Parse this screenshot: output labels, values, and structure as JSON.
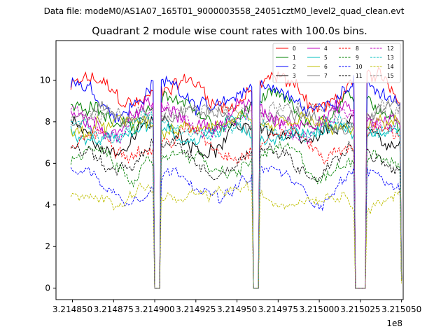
{
  "suptitle": "Data file: modeM0/AS1A07_165T01_9000003558_24051cztM0_level2_quad_clean.evt",
  "chart_data": {
    "type": "line",
    "title": "Quadrant 2 module wise count rates with 100.0s bins.",
    "xlabel": "",
    "ylabel": "",
    "x_offset_label": "1e8",
    "xlim": [
      321484000,
      321505100
    ],
    "ylim": [
      -0.55,
      11.9
    ],
    "x_ticks": [
      321485000,
      321487500,
      321490000,
      321492500,
      321495000,
      321497500,
      321500000,
      321502500,
      321505000
    ],
    "x_tick_labels": [
      "3.214850",
      "3.214875",
      "3.214900",
      "3.214925",
      "3.214950",
      "3.214975",
      "3.215000",
      "3.215025",
      "3.215050"
    ],
    "y_ticks": [
      0,
      2,
      4,
      6,
      8,
      10
    ],
    "y_tick_labels": [
      "0",
      "2",
      "4",
      "6",
      "8",
      "10"
    ],
    "x_start": 321484900,
    "bin_seconds": 100,
    "n_bins": 202,
    "gti_gaps": [
      [
        321489950,
        321490350
      ],
      [
        321495950,
        321496350
      ],
      [
        321502150,
        321502850
      ]
    ],
    "legend_position": "upper right",
    "series": [
      {
        "name": "0",
        "mean": 9.6,
        "color": "#ff0000",
        "dash": "solid"
      },
      {
        "name": "1",
        "mean": 8.6,
        "color": "#008000",
        "dash": "solid"
      },
      {
        "name": "2",
        "mean": 9.4,
        "color": "#0000ff",
        "dash": "solid"
      },
      {
        "name": "3",
        "mean": 7.5,
        "color": "#000000",
        "dash": "solid"
      },
      {
        "name": "4",
        "mean": 8.4,
        "color": "#bf00bf",
        "dash": "solid"
      },
      {
        "name": "5",
        "mean": 7.7,
        "color": "#00bfbf",
        "dash": "solid"
      },
      {
        "name": "6",
        "mean": 7.9,
        "color": "#bfbf00",
        "dash": "solid"
      },
      {
        "name": "7",
        "mean": 8.3,
        "color": "#808080",
        "dash": "solid"
      },
      {
        "name": "8",
        "mean": 7.2,
        "color": "#ff0000",
        "dash": "dashed"
      },
      {
        "name": "9",
        "mean": 6.2,
        "color": "#008000",
        "dash": "dashed"
      },
      {
        "name": "10",
        "mean": 5.2,
        "color": "#0000ff",
        "dash": "dashed"
      },
      {
        "name": "11",
        "mean": 6.4,
        "color": "#000000",
        "dash": "dashed"
      },
      {
        "name": "12",
        "mean": 8.2,
        "color": "#bf00bf",
        "dash": "dashed"
      },
      {
        "name": "13",
        "mean": 7.9,
        "color": "#00bfbf",
        "dash": "dashed"
      },
      {
        "name": "14",
        "mean": 4.6,
        "color": "#bfbf00",
        "dash": "dashed"
      },
      {
        "name": "15",
        "mean": 8.6,
        "color": "#808080",
        "dash": "dashed"
      }
    ]
  }
}
